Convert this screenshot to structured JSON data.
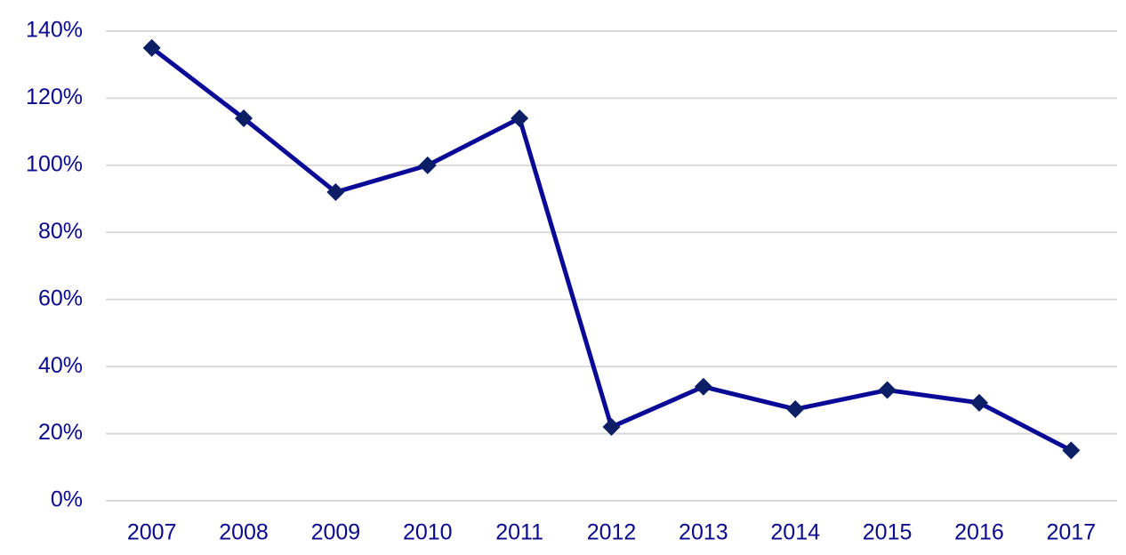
{
  "chart_data": {
    "type": "line",
    "categories": [
      "2007",
      "2008",
      "2009",
      "2010",
      "2011",
      "2012",
      "2013",
      "2014",
      "2015",
      "2016",
      "2017"
    ],
    "values": [
      135,
      114,
      92,
      100,
      114,
      22,
      34,
      27.3,
      33,
      29.2,
      15
    ],
    "color": "#0a0a96",
    "marker_color": "#0b1e66",
    "ylim": [
      0,
      140
    ],
    "yticks": [
      {
        "value": 0,
        "label": "0%"
      },
      {
        "value": 20,
        "label": "20%"
      },
      {
        "value": 40,
        "label": "40%"
      },
      {
        "value": 60,
        "label": "60%"
      },
      {
        "value": 80,
        "label": "80%"
      },
      {
        "value": 100,
        "label": "100%"
      },
      {
        "value": 120,
        "label": "120%"
      },
      {
        "value": 140,
        "label": "140%"
      }
    ],
    "grid": true
  }
}
